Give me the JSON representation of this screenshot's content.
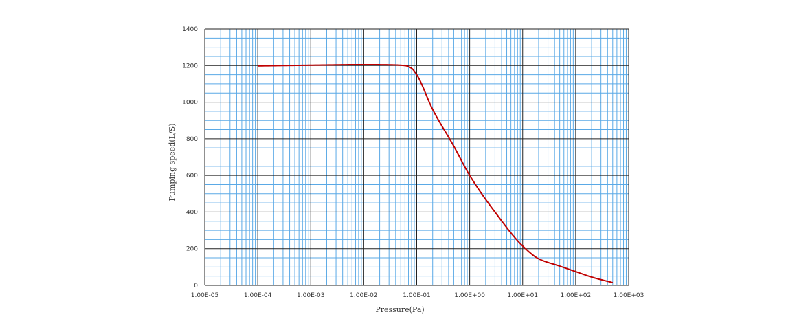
{
  "chart_data": {
    "type": "line",
    "xlabel": "Pressure(Pa)",
    "ylabel": "Pumping speed(L/S)",
    "x_scale": "log",
    "xlim": [
      1e-05,
      1000
    ],
    "ylim": [
      0,
      1400
    ],
    "x_ticks": [
      1e-05,
      0.0001,
      0.001,
      0.01,
      0.1,
      1,
      10,
      100,
      1000
    ],
    "x_tick_labels": [
      "1.00E-05",
      "1.00E-04",
      "1.00E-03",
      "1.00E-02",
      "1.00E-01",
      "1.00E+00",
      "1.00E+01",
      "1.00E+02",
      "1.00E+03"
    ],
    "y_ticks": [
      0,
      200,
      400,
      600,
      800,
      1000,
      1200,
      1400
    ],
    "y_tick_labels": [
      "0",
      "200",
      "400",
      "600",
      "800",
      "1000",
      "1200",
      "1400"
    ],
    "grid": true,
    "legend": "none",
    "colors": {
      "minor_grid": "#5aa9e6",
      "major_grid": "#222222",
      "line": "#c00000"
    },
    "series": [
      {
        "x": [
          0.0001,
          0.001,
          0.01,
          0.03,
          0.06,
          0.08,
          0.1,
          0.2,
          0.5,
          1,
          3,
          10,
          20,
          50,
          100,
          200,
          500
        ],
        "values": [
          1198,
          1202,
          1205,
          1204,
          1200,
          1185,
          1150,
          960,
          760,
          600,
          400,
          215,
          145,
          105,
          75,
          45,
          15
        ]
      }
    ]
  }
}
